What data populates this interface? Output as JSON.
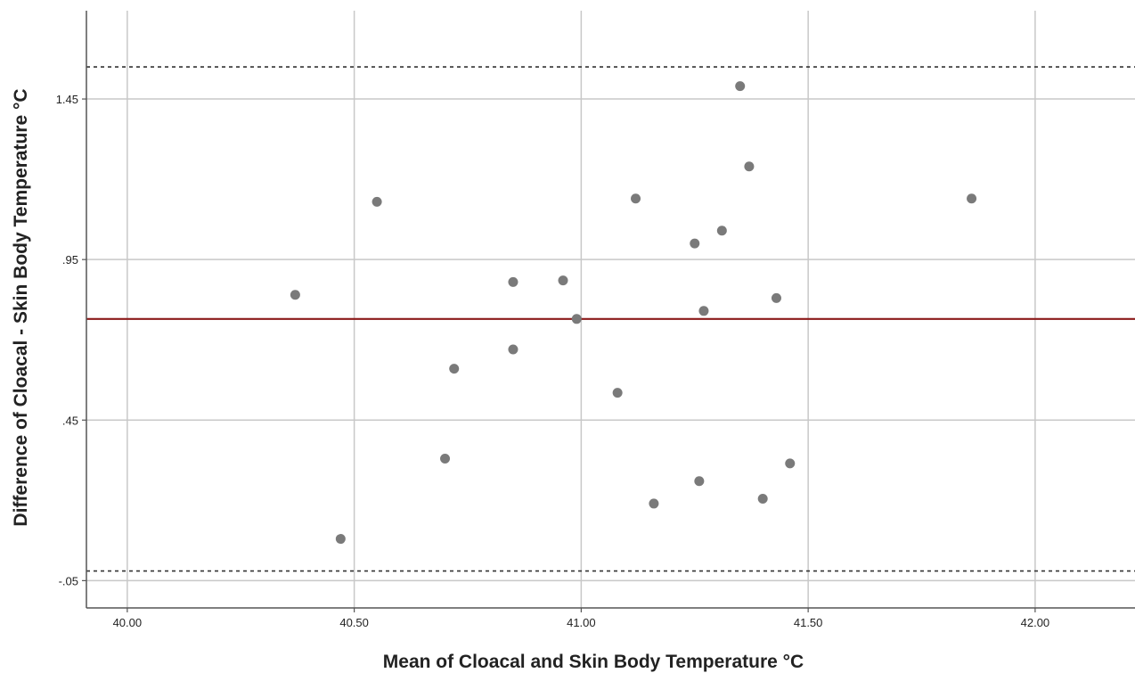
{
  "chart_data": {
    "type": "scatter",
    "title": "",
    "xlabel": "Mean of Cloacal and Skin Body Temperature °C",
    "ylabel": "Difference of Cloacal - Skin Body Temperature °C",
    "xlim": [
      39.91,
      42.22
    ],
    "ylim": [
      -0.135,
      1.725
    ],
    "x_ticks": [
      {
        "value": 40.0,
        "label": "40.00"
      },
      {
        "value": 40.5,
        "label": "40.50"
      },
      {
        "value": 41.0,
        "label": "41.00"
      },
      {
        "value": 41.5,
        "label": "41.50"
      },
      {
        "value": 42.0,
        "label": "42.00"
      }
    ],
    "y_ticks": [
      {
        "value": -0.05,
        "label": "-.05"
      },
      {
        "value": 0.45,
        "label": ".45"
      },
      {
        "value": 0.95,
        "label": ".95"
      },
      {
        "value": 1.45,
        "label": "1.45"
      }
    ],
    "grid": true,
    "mean_difference": 0.765,
    "lower_limit": -0.02,
    "upper_limit": 1.55,
    "colors": {
      "points": "#7a7a7a",
      "mean_line": "#8b1a1a",
      "limit_lines": "#333333",
      "grid": "#c8c8c8",
      "axis": "#555555"
    },
    "points": [
      {
        "x": 40.37,
        "y": 0.84
      },
      {
        "x": 40.47,
        "y": 0.08
      },
      {
        "x": 40.55,
        "y": 1.13
      },
      {
        "x": 40.7,
        "y": 0.33
      },
      {
        "x": 40.72,
        "y": 0.61
      },
      {
        "x": 40.85,
        "y": 0.67
      },
      {
        "x": 40.85,
        "y": 0.88
      },
      {
        "x": 40.96,
        "y": 0.885
      },
      {
        "x": 40.99,
        "y": 0.765
      },
      {
        "x": 41.08,
        "y": 0.535
      },
      {
        "x": 41.12,
        "y": 1.14
      },
      {
        "x": 41.16,
        "y": 0.19
      },
      {
        "x": 41.25,
        "y": 1.0
      },
      {
        "x": 41.26,
        "y": 0.26
      },
      {
        "x": 41.27,
        "y": 0.79
      },
      {
        "x": 41.31,
        "y": 1.04
      },
      {
        "x": 41.35,
        "y": 1.49
      },
      {
        "x": 41.37,
        "y": 1.24
      },
      {
        "x": 41.4,
        "y": 0.205
      },
      {
        "x": 41.43,
        "y": 0.83
      },
      {
        "x": 41.46,
        "y": 0.315
      },
      {
        "x": 41.86,
        "y": 1.14
      }
    ]
  }
}
